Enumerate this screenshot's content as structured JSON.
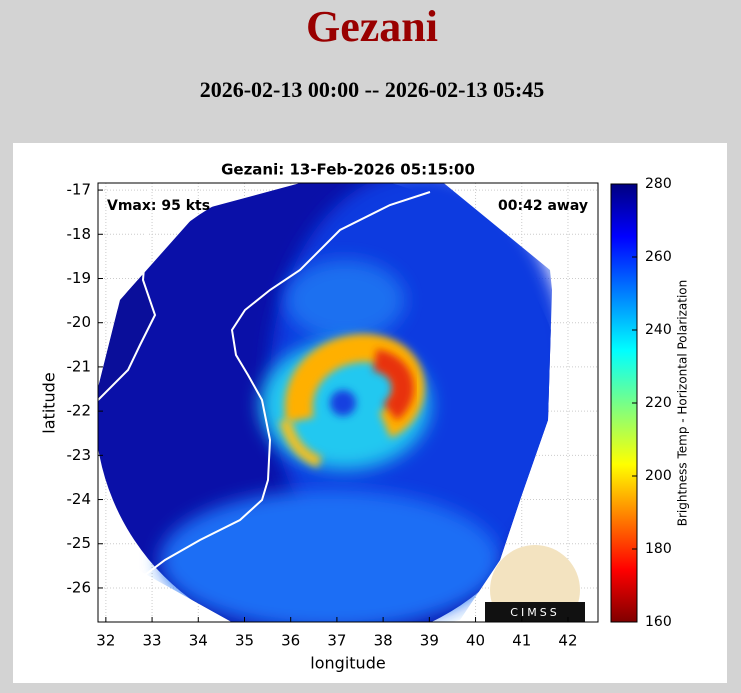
{
  "header": {
    "title": "Gezani",
    "subtitle": "2026-02-13 00:00 -- 2026-02-13 05:45"
  },
  "map": {
    "title": "Gezani: 13-Feb-2026 05:15:00",
    "annotations": {
      "intensity": "Vmax: 95 kts",
      "time_offset": "00:42 away"
    },
    "xlabel": "longitude",
    "ylabel": "latitude",
    "xlim": [
      31.83,
      42.65
    ],
    "ylim": [
      -26.77,
      -16.84
    ],
    "xticks": [
      32,
      33,
      34,
      35,
      36,
      37,
      38,
      39,
      40,
      41,
      42
    ],
    "yticks": [
      -17,
      -18,
      -19,
      -20,
      -21,
      -22,
      -23,
      -24,
      -25,
      -26
    ],
    "grid": true,
    "colorbar": {
      "label": "Brightness Temp - Horizontal Polarization",
      "lim": [
        160,
        280
      ],
      "ticks": [
        160,
        180,
        200,
        220,
        240,
        260,
        280
      ]
    },
    "logo": "CIMSS"
  }
}
